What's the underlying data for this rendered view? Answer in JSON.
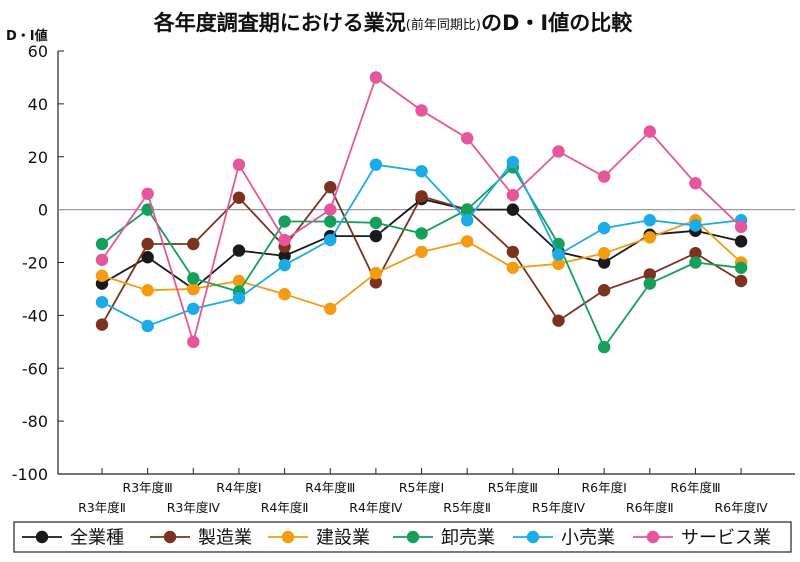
{
  "chart_data": {
    "type": "line",
    "title": "各年度調査期における業況",
    "title_note": "(前年同期比)",
    "title_suffix": "のD・I値の比較",
    "ylabel": "D・I値",
    "xlabel": "",
    "ylim": [
      -100,
      60
    ],
    "yticks": [
      60,
      40,
      20,
      0,
      -20,
      -40,
      -60,
      -80,
      -100
    ],
    "categories": [
      "R3年度Ⅱ",
      "R3年度Ⅲ",
      "R3年度Ⅳ",
      "R4年度Ⅰ",
      "R4年度Ⅱ",
      "R4年度Ⅲ",
      "R4年度Ⅳ",
      "R5年度Ⅰ",
      "R5年度Ⅱ",
      "R5年度Ⅲ",
      "R5年度Ⅳ",
      "R6年度Ⅰ",
      "R6年度Ⅱ",
      "R6年度Ⅲ",
      "R6年度Ⅳ"
    ],
    "zero_line": true,
    "grid": false,
    "legend_position": "bottom",
    "series": [
      {
        "name": "全業種",
        "color": "#1a1a1a",
        "values": [
          -28,
          -18,
          -30,
          -15.5,
          -17.5,
          -10,
          -10,
          4,
          0,
          0,
          -16,
          -20,
          -9.5,
          -8,
          -12
        ]
      },
      {
        "name": "製造業",
        "color": "#7b3320",
        "values": [
          -43.5,
          -13,
          -13,
          4.5,
          -14,
          8.5,
          -27.5,
          5,
          0,
          -16,
          -42,
          -30.5,
          -24.5,
          -16.5,
          -27
        ]
      },
      {
        "name": "建設業",
        "color": "#f39c12",
        "values": [
          -25,
          -30.5,
          -30,
          -27,
          -32,
          -37.5,
          -24,
          -16,
          -12,
          -22,
          -20.5,
          -16.5,
          -10.5,
          -4,
          -20
        ]
      },
      {
        "name": "卸売業",
        "color": "#14a05a",
        "values": [
          -13,
          0,
          -26,
          -31,
          -4.5,
          -4.5,
          -5,
          -9,
          0,
          16,
          -13,
          -52,
          -28,
          -20,
          -22
        ]
      },
      {
        "name": "小売業",
        "color": "#1aace6",
        "values": [
          -35,
          -44,
          -37.5,
          -33.5,
          -21,
          -11.5,
          17,
          14.5,
          -4,
          18,
          -17,
          -7,
          -4,
          -6,
          -4
        ]
      },
      {
        "name": "サービス業",
        "color": "#e5579a",
        "values": [
          -19,
          6,
          -50,
          17,
          -11.5,
          0,
          50,
          37.5,
          27,
          5.5,
          22,
          12.5,
          29.5,
          10,
          -6.5
        ]
      }
    ]
  }
}
